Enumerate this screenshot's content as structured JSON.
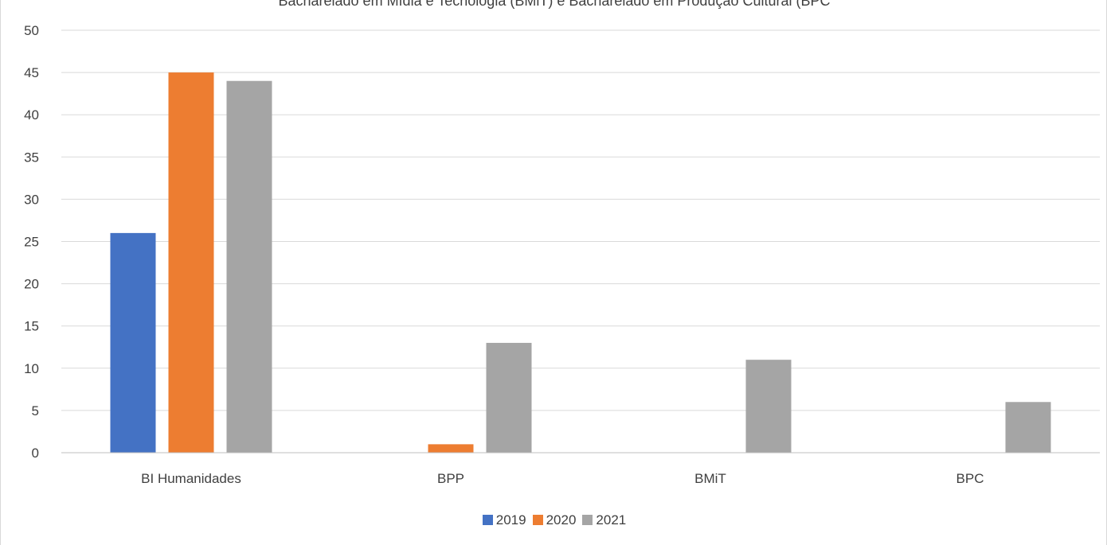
{
  "chart_data": {
    "type": "bar",
    "title": "Bacharelado em Mídia e Tecnologia (BMiT) e Bacharelado em Produção Cultural (BPC",
    "categories": [
      "BI Humanidades",
      "BPP",
      "BMiT",
      "BPC"
    ],
    "series": [
      {
        "name": "2019",
        "color": "#4472C4",
        "values": [
          26,
          0,
          0,
          0
        ]
      },
      {
        "name": "2020",
        "color": "#ED7D31",
        "values": [
          45,
          1,
          0,
          0
        ]
      },
      {
        "name": "2021",
        "color": "#A5A5A5",
        "values": [
          44,
          13,
          11,
          6
        ]
      }
    ],
    "ylim": [
      0,
      50
    ],
    "yticks": [
      "0",
      "5",
      "10",
      "15",
      "20",
      "25",
      "30",
      "35",
      "40",
      "45",
      "50"
    ],
    "grid": true,
    "legend_position": "bottom"
  }
}
